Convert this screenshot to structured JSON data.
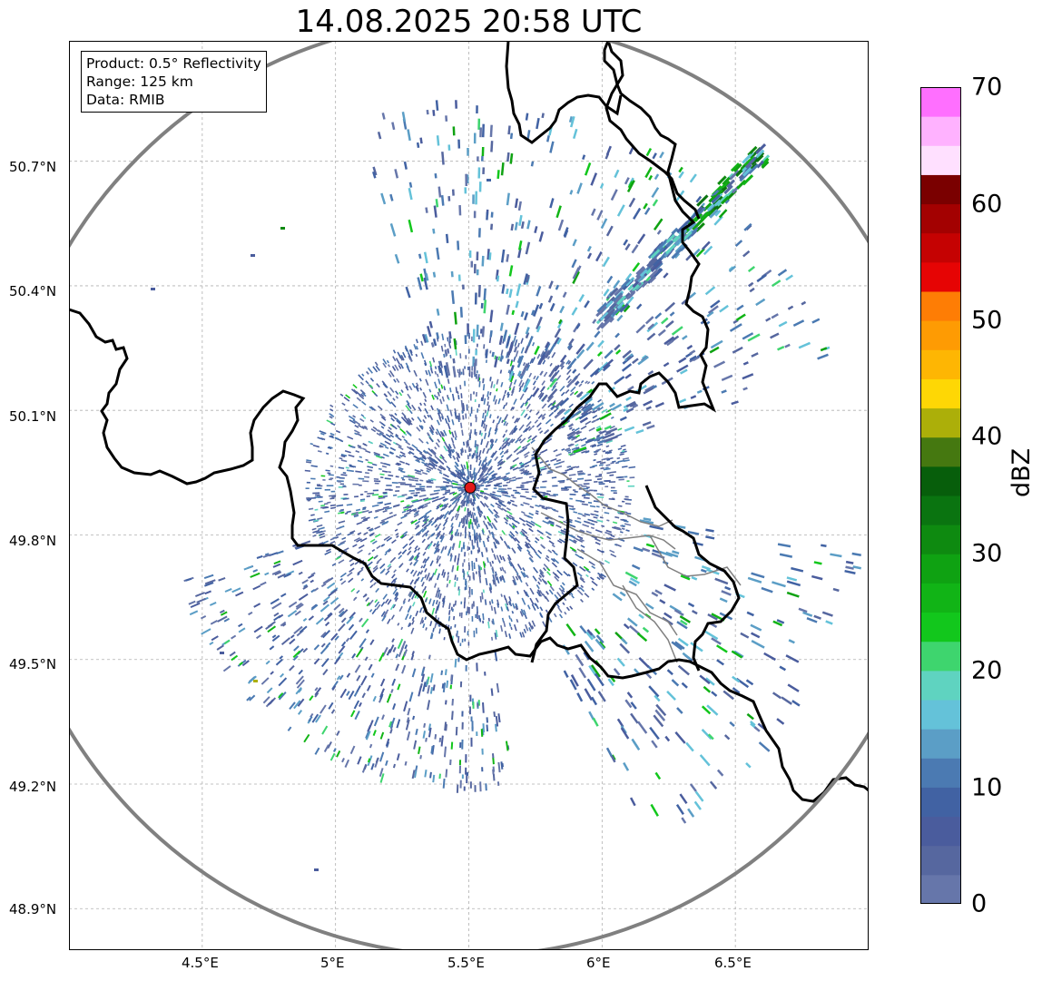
{
  "title": "14.08.2025 20:58 UTC",
  "info": {
    "product": "Product: 0.5° Reflectivity",
    "range": "Range: 125 km",
    "source": "Data: RMIB"
  },
  "map": {
    "lon_range": [
      4.0,
      7.0
    ],
    "lat_range": [
      48.8,
      50.99
    ],
    "lon_ticks": [
      "4.5°E",
      "5°E",
      "5.5°E",
      "6°E",
      "6.5°E"
    ],
    "lat_ticks": [
      "50.7°N",
      "50.4°N",
      "50.1°N",
      "49.8°N",
      "49.5°N",
      "49.2°N",
      "48.9°N"
    ],
    "radar_site": {
      "lon": 5.505,
      "lat": 49.914
    },
    "range_ring_color": "#808080",
    "border_color": "#000000",
    "province_color": "#808080",
    "site_marker_color": "#e11919",
    "grid": true
  },
  "colorbar": {
    "label": "dBZ",
    "ticks": [
      "0",
      "10",
      "20",
      "30",
      "40",
      "50",
      "60",
      "70"
    ],
    "range": [
      0,
      70
    ],
    "colors": [
      "#6676aa",
      "#56679f",
      "#4a5c9d",
      "#4162a3",
      "#4b7ab2",
      "#5b9ec6",
      "#64c2d9",
      "#5fd3c0",
      "#3ed56e",
      "#12c71c",
      "#11b416",
      "#0fa212",
      "#0e8a10",
      "#0a7410",
      "#075e0b",
      "#457810",
      "#acaf09",
      "#fed705",
      "#feb603",
      "#fe9b03",
      "#fe7d05",
      "#e60404",
      "#c50202",
      "#a30101",
      "#7a0000",
      "#ffe0ff",
      "#ffb2ff",
      "#ff6fff",
      "#eb35eb"
    ]
  },
  "chart_data": {
    "type": "heatmap",
    "title": "14.08.2025 20:58 UTC",
    "xlabel": "",
    "ylabel": "",
    "xlim": [
      4.0,
      7.0
    ],
    "ylim": [
      48.8,
      50.99
    ],
    "colorbar_label": "dBZ",
    "value_range": [
      0,
      70
    ],
    "note_values": "Radar reflectivity field: mostly light echoes 0-10 dBZ around the site, scattered 15-25 dBZ cells, a band of 20-30 dBZ echoes extending NE toward 6.6°E 50.72°N"
  }
}
